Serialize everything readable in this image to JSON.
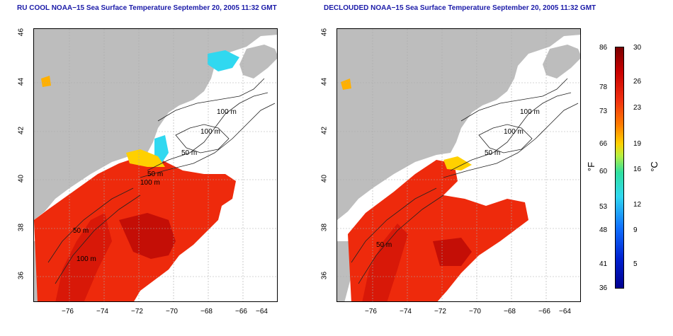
{
  "left_panel": {
    "title": "RU COOL NOAA−15 Sea Surface Temperature September 20, 2005 11:32 GMT",
    "contour_labels": [
      "100 m",
      "100 m",
      "50 m",
      "50 m",
      "50 m",
      "100 m",
      "100 m"
    ]
  },
  "right_panel": {
    "title": "DECLOUDED NOAA−15 Sea Surface Temperature September 20, 2005 11:32 GMT",
    "contour_labels": [
      "100 m",
      "100 m",
      "50 m",
      "50 m"
    ]
  },
  "axes": {
    "x_ticks": [
      "−76",
      "−74",
      "−72",
      "−70",
      "−68",
      "−66",
      "−64"
    ],
    "y_ticks": [
      "46",
      "44",
      "42",
      "40",
      "38",
      "36"
    ]
  },
  "colorbar": {
    "fahrenheit_ticks": [
      "86",
      "78",
      "73",
      "66",
      "60",
      "53",
      "48",
      "41",
      "36"
    ],
    "celsius_ticks": [
      "30",
      "26",
      "23",
      "19",
      "16",
      "12",
      "9",
      "5"
    ],
    "fahrenheit_unit": "°F",
    "celsius_unit": "°C",
    "colors": [
      "#7a0000",
      "#c80000",
      "#f03010",
      "#ff7a00",
      "#ffd000",
      "#30e0a0",
      "#30d8f0",
      "#1070ff",
      "#000090"
    ]
  }
}
